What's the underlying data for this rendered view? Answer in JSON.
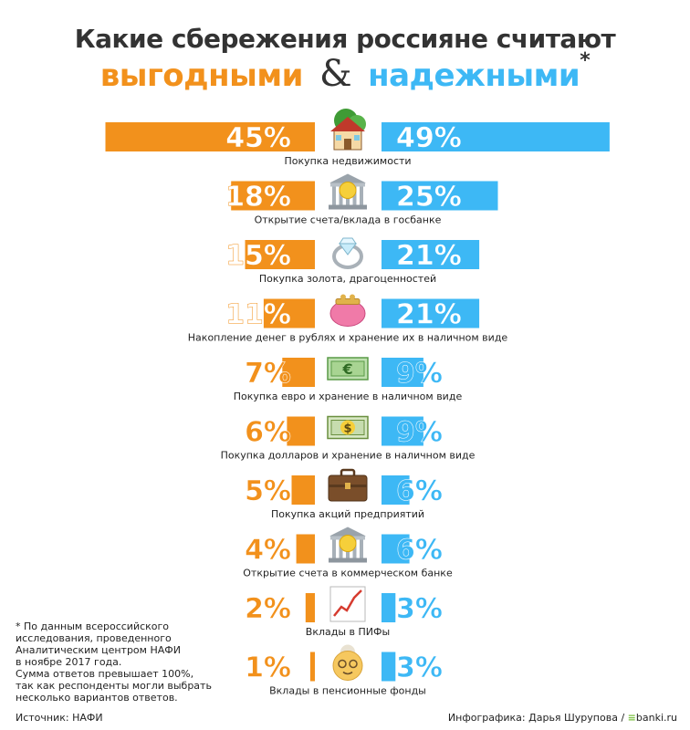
{
  "chart_data": {
    "type": "bar",
    "title": "Какие сбережения россияне считают",
    "subtitle": {
      "left": "выгодными",
      "amp": "&",
      "right": "надежными",
      "star": "*"
    },
    "categories": [
      "Покупка недвижимости",
      "Открытие счета/вклада в госбанке",
      "Покупка золота, драгоценностей",
      "Накопление денег в рублях и хранение их в наличном виде",
      "Покупка евро и хранение в наличном виде",
      "Покупка долларов и хранение в наличном виде",
      "Покупка акций предприятий",
      "Открытие счета в коммерческом банке",
      "Вклады в ПИФы",
      "Вклады в пенсионные фонды"
    ],
    "icons": [
      "house-icon",
      "bank-icon",
      "ring-icon",
      "purse-icon",
      "euro-banknote-icon",
      "dollar-banknote-icon",
      "briefcase-icon",
      "bank-icon",
      "chart-rising-icon",
      "grandmother-icon"
    ],
    "series": [
      {
        "name": "выгодными",
        "color": "#f2911c",
        "values": [
          45,
          18,
          15,
          11,
          7,
          6,
          5,
          4,
          2,
          1
        ],
        "labels": [
          "45%",
          "18%",
          "15%",
          "11%",
          "7%",
          "6%",
          "5%",
          "4%",
          "2%",
          "1%"
        ]
      },
      {
        "name": "надежными",
        "color": "#3db8f5",
        "values": [
          49,
          25,
          21,
          21,
          9,
          9,
          6,
          6,
          3,
          3
        ],
        "labels": [
          "49%",
          "25%",
          "21%",
          "21%",
          "9%",
          "9%",
          "6%",
          "6%",
          "3%",
          "3%"
        ]
      }
    ]
  },
  "footnote": [
    "* По данным всероссийского",
    "исследования, проведенного",
    "Аналитическим центром НАФИ",
    "в ноябре 2017 года.",
    "Сумма ответов превышает 100%,",
    "так как респонденты могли выбрать",
    "несколько вариантов ответов."
  ],
  "source": "Источник: НАФИ",
  "credit": {
    "text": "Инфографика: Дарья Шурупова /",
    "logo_mark": "≡",
    "logo_text": "banki.ru"
  }
}
